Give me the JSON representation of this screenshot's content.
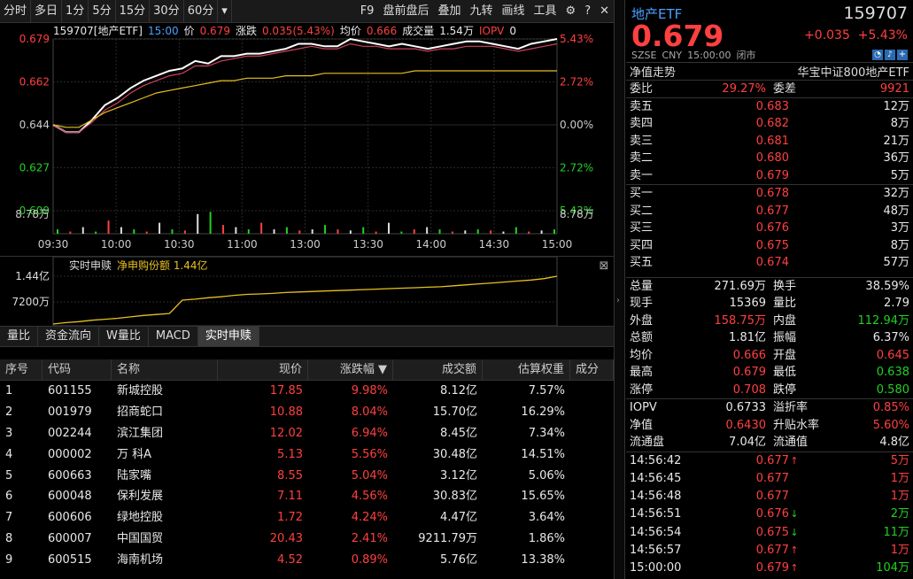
{
  "toolbar": {
    "left": [
      "分时",
      "多日",
      "1分",
      "5分",
      "15分",
      "30分",
      "60分"
    ],
    "more": "▾",
    "right": [
      "F9",
      "盘前盘后",
      "叠加",
      "九转",
      "画线",
      "工具"
    ]
  },
  "chart_header": {
    "code_name": "159707[地产ETF]",
    "time": "15:00",
    "price_label": "价",
    "price": "0.679",
    "chg_label": "涨跌",
    "chg": "0.035(5.43%)",
    "avg_label": "均价",
    "avg": "0.666",
    "vol_label": "成交量",
    "vol": "1.54万",
    "iopv_label": "IOPV",
    "iopv": "0"
  },
  "chart_data": {
    "type": "line",
    "x_ticks": [
      "09:30",
      "10:00",
      "10:30",
      "11:00",
      "13:00",
      "13:30",
      "14:00",
      "14:30",
      "15:00"
    ],
    "y_left_ticks": [
      "0.679",
      "0.662",
      "0.644",
      "0.627",
      "0.609"
    ],
    "y_right_ticks": [
      "5.43%",
      "2.72%",
      "0.00%",
      "2.72%",
      "5.43%"
    ],
    "vol_label": "8.78万",
    "ylim": [
      0.609,
      0.679
    ],
    "series": [
      {
        "values": [
          0.644,
          0.641,
          0.641,
          0.646,
          0.652,
          0.655,
          0.659,
          0.662,
          0.664,
          0.666,
          0.667,
          0.67,
          0.669,
          0.672,
          0.672,
          0.673,
          0.673,
          0.674,
          0.675,
          0.677,
          0.677,
          0.676,
          0.676,
          0.679,
          0.678,
          0.677,
          0.676,
          0.677,
          0.676,
          0.675,
          0.676,
          0.677,
          0.678,
          0.678,
          0.677,
          0.676,
          0.675,
          0.677,
          0.678,
          0.679
        ],
        "color": "#ffffff"
      },
      {
        "values": [
          0.644,
          0.641,
          0.641,
          0.645,
          0.65,
          0.653,
          0.657,
          0.66,
          0.662,
          0.664,
          0.665,
          0.668,
          0.668,
          0.67,
          0.671,
          0.672,
          0.672,
          0.673,
          0.674,
          0.675,
          0.676,
          0.675,
          0.675,
          0.677,
          0.676,
          0.676,
          0.675,
          0.675,
          0.675,
          0.674,
          0.675,
          0.675,
          0.676,
          0.676,
          0.676,
          0.675,
          0.674,
          0.675,
          0.676,
          0.677
        ],
        "color": "#d04060"
      },
      {
        "values": [
          0.644,
          0.643,
          0.643,
          0.646,
          0.649,
          0.651,
          0.653,
          0.655,
          0.657,
          0.658,
          0.659,
          0.66,
          0.661,
          0.662,
          0.662,
          0.663,
          0.663,
          0.663,
          0.664,
          0.664,
          0.664,
          0.665,
          0.665,
          0.665,
          0.665,
          0.665,
          0.665,
          0.665,
          0.666,
          0.666,
          0.666,
          0.666,
          0.666,
          0.666,
          0.666,
          0.666,
          0.666,
          0.666,
          0.666,
          0.666
        ],
        "color": "#e8c020"
      }
    ],
    "volume": [
      0.2,
      0.1,
      0.3,
      0.1,
      0.6,
      0.3,
      0.2,
      0.1,
      0.5,
      0.2,
      0.15,
      0.9,
      1.0,
      0.4,
      0.3,
      0.2,
      0.5,
      0.2,
      0.3,
      0.15,
      0.2,
      0.4,
      0.2,
      0.15,
      0.3,
      0.1,
      0.5,
      0.1,
      0.2,
      0.3,
      0.2,
      0.1,
      0.15,
      0.2,
      0.15,
      0.1,
      0.3,
      0.1,
      0.15,
      0.2
    ]
  },
  "sub_panel": {
    "title": "实时申赎",
    "net_label": "净申购份额",
    "net_value": "1.44亿",
    "y_ticks": [
      "1.44亿",
      "7200万"
    ],
    "values": [
      0.0,
      0.03,
      0.05,
      0.08,
      0.1,
      0.12,
      0.15,
      0.18,
      0.2,
      0.22,
      0.5,
      0.52,
      0.55,
      0.57,
      0.6,
      0.62,
      0.63,
      0.64,
      0.66,
      0.67,
      0.68,
      0.69,
      0.7,
      0.71,
      0.72,
      0.73,
      0.74,
      0.75,
      0.76,
      0.77,
      0.78,
      0.8,
      0.82,
      0.84,
      0.86,
      0.88,
      0.9,
      0.92,
      0.95,
      1.0
    ]
  },
  "tabs": [
    "量比",
    "资金流向",
    "W量比",
    "MACD",
    "实时申赎"
  ],
  "table": {
    "headers": [
      "序号",
      "代码",
      "名称",
      "现价",
      "涨跌幅 ▼",
      "成交额",
      "估算权重",
      "成分"
    ],
    "rows": [
      [
        "1",
        "601155",
        "新城控股",
        "17.85",
        "9.98%",
        "8.12亿",
        "7.57%"
      ],
      [
        "2",
        "001979",
        "招商蛇口",
        "10.88",
        "8.04%",
        "15.70亿",
        "16.29%"
      ],
      [
        "3",
        "002244",
        "滨江集团",
        "12.02",
        "6.94%",
        "8.45亿",
        "7.34%"
      ],
      [
        "4",
        "000002",
        "万 科A",
        "5.13",
        "5.56%",
        "30.48亿",
        "14.51%"
      ],
      [
        "5",
        "600663",
        "陆家嘴",
        "8.55",
        "5.04%",
        "3.12亿",
        "5.06%"
      ],
      [
        "6",
        "600048",
        "保利发展",
        "7.11",
        "4.56%",
        "30.83亿",
        "15.65%"
      ],
      [
        "7",
        "600606",
        "绿地控股",
        "1.72",
        "4.24%",
        "4.47亿",
        "3.64%"
      ],
      [
        "8",
        "600007",
        "中国国贸",
        "20.43",
        "2.41%",
        "9211.79万",
        "1.86%"
      ],
      [
        "9",
        "600515",
        "海南机场",
        "4.52",
        "0.89%",
        "5.76亿",
        "13.38%"
      ]
    ]
  },
  "quote": {
    "name": "地产ETF",
    "code": "159707",
    "price": "0.679",
    "change": "+0.035",
    "change_pct": "+5.43%",
    "market": "SZSE",
    "currency": "CNY",
    "time": "15:00:00",
    "status": "闭市",
    "trend_label": "净值走势",
    "index_name": "华宝中证800地产ETF",
    "wb_label": "委比",
    "wb": "29.27%",
    "wc_label": "委差",
    "wc": "9921"
  },
  "asks": [
    {
      "label": "卖五",
      "price": "0.683",
      "vol": "12万"
    },
    {
      "label": "卖四",
      "price": "0.682",
      "vol": "8万"
    },
    {
      "label": "卖三",
      "price": "0.681",
      "vol": "21万"
    },
    {
      "label": "卖二",
      "price": "0.680",
      "vol": "36万"
    },
    {
      "label": "卖一",
      "price": "0.679",
      "vol": "5万"
    }
  ],
  "bids": [
    {
      "label": "买一",
      "price": "0.678",
      "vol": "32万"
    },
    {
      "label": "买二",
      "price": "0.677",
      "vol": "48万"
    },
    {
      "label": "买三",
      "price": "0.676",
      "vol": "3万"
    },
    {
      "label": "买四",
      "price": "0.675",
      "vol": "8万"
    },
    {
      "label": "买五",
      "price": "0.674",
      "vol": "57万"
    }
  ],
  "stats": [
    [
      "总量",
      "271.69万",
      "white",
      "换手",
      "38.59%",
      "white"
    ],
    [
      "现手",
      "15369",
      "white",
      "量比",
      "2.79",
      "white"
    ],
    [
      "外盘",
      "158.75万",
      "red",
      "内盘",
      "112.94万",
      "green"
    ],
    [
      "总额",
      "1.81亿",
      "white",
      "振幅",
      "6.37%",
      "white"
    ],
    [
      "均价",
      "0.666",
      "red",
      "开盘",
      "0.645",
      "red"
    ],
    [
      "最高",
      "0.679",
      "red",
      "最低",
      "0.638",
      "green"
    ],
    [
      "涨停",
      "0.708",
      "red",
      "跌停",
      "0.580",
      "green"
    ]
  ],
  "stats2": [
    [
      "IOPV",
      "0.6733",
      "white",
      "溢折率",
      "0.85%",
      "red"
    ],
    [
      "净值",
      "0.6430",
      "red",
      "升贴水率",
      "5.60%",
      "red"
    ],
    [
      "流通盘",
      "7.04亿",
      "white",
      "流通值",
      "4.8亿",
      "white"
    ]
  ],
  "ticks": [
    [
      "14:56:42",
      "0.677",
      "↑",
      "5万",
      "red"
    ],
    [
      "14:56:45",
      "0.677",
      "",
      "1万",
      "red"
    ],
    [
      "14:56:48",
      "0.677",
      "",
      "1万",
      "red"
    ],
    [
      "14:56:51",
      "0.676",
      "↓",
      "2万",
      "green"
    ],
    [
      "14:56:54",
      "0.675",
      "↓",
      "11万",
      "green"
    ],
    [
      "14:56:57",
      "0.677",
      "↑",
      "1万",
      "red"
    ],
    [
      "15:00:00",
      "0.679",
      "↑",
      "104万",
      "green"
    ]
  ]
}
